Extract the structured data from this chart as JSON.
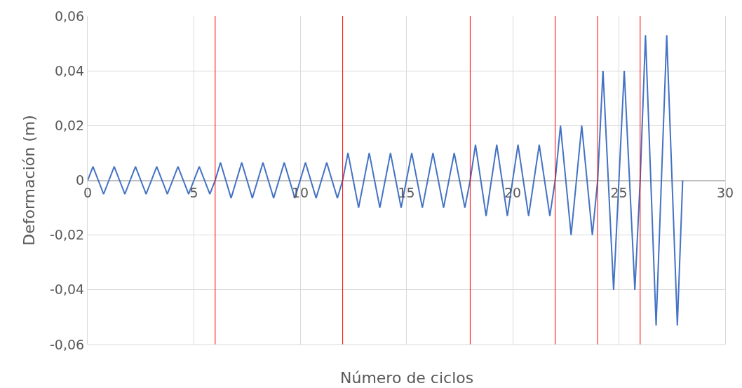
{
  "chart_data": {
    "type": "line",
    "xlabel": "Número de ciclos",
    "ylabel": "Deformación (m)",
    "x": [
      0,
      0.25,
      0.5,
      0.75,
      1,
      1.25,
      1.5,
      1.75,
      2,
      2.25,
      2.5,
      2.75,
      3,
      3.25,
      3.5,
      3.75,
      4,
      4.25,
      4.5,
      4.75,
      5,
      5.25,
      5.5,
      5.75,
      6,
      6.25,
      6.5,
      6.75,
      7,
      7.25,
      7.5,
      7.75,
      8,
      8.25,
      8.5,
      8.75,
      9,
      9.25,
      9.5,
      9.75,
      10,
      10.25,
      10.5,
      10.75,
      11,
      11.25,
      11.5,
      11.75,
      12,
      12.25,
      12.5,
      12.75,
      13,
      13.25,
      13.5,
      13.75,
      14,
      14.25,
      14.5,
      14.75,
      15,
      15.25,
      15.5,
      15.75,
      16,
      16.25,
      16.5,
      16.75,
      17,
      17.25,
      17.5,
      17.75,
      18,
      18.25,
      18.5,
      18.75,
      19,
      19.25,
      19.5,
      19.75,
      20,
      20.25,
      20.5,
      20.75,
      21,
      21.25,
      21.5,
      21.75,
      22,
      22.25,
      22.5,
      22.75,
      23,
      23.25,
      23.5,
      23.75,
      24,
      24.25,
      24.5,
      24.75,
      25,
      25.25,
      25.5,
      25.75,
      26,
      26.25,
      26.5,
      26.75,
      27,
      27.25,
      27.5,
      27.75,
      28
    ],
    "series": [
      {
        "color": "#4472c4",
        "values": [
          0,
          0.005,
          0,
          -0.005,
          0,
          0.005,
          0,
          -0.005,
          0,
          0.005,
          0,
          -0.005,
          0,
          0.005,
          0,
          -0.005,
          0,
          0.005,
          0,
          -0.005,
          0,
          0.005,
          0,
          -0.005,
          0,
          0.0065,
          0,
          -0.0065,
          0,
          0.0065,
          0,
          -0.0065,
          0,
          0.0065,
          0,
          -0.0065,
          0,
          0.0065,
          0,
          -0.0065,
          0,
          0.0065,
          0,
          -0.0065,
          0,
          0.0065,
          0,
          -0.0065,
          0,
          0.01,
          0,
          -0.01,
          0,
          0.01,
          0,
          -0.01,
          0,
          0.01,
          0,
          -0.01,
          0,
          0.01,
          0,
          -0.01,
          0,
          0.01,
          0,
          -0.01,
          0,
          0.01,
          0,
          -0.01,
          0,
          0.013,
          0,
          -0.013,
          0,
          0.013,
          0,
          -0.013,
          0,
          0.013,
          0,
          -0.013,
          0,
          0.013,
          0,
          -0.013,
          0,
          0.02,
          0,
          -0.02,
          0,
          0.02,
          0,
          -0.02,
          0,
          0.04,
          0,
          -0.04,
          0,
          0.04,
          0,
          -0.04,
          0,
          0.053,
          0,
          -0.053,
          0,
          0.053,
          0,
          -0.053,
          0
        ]
      }
    ],
    "xlim": [
      0,
      30
    ],
    "xticks": [
      0,
      5,
      10,
      15,
      20,
      25,
      30
    ],
    "ylim": [
      -0.06,
      0.06
    ],
    "yticks": [
      {
        "value": -0.06,
        "label": "-0,06"
      },
      {
        "value": -0.04,
        "label": "-0,04"
      },
      {
        "value": -0.02,
        "label": "-0,02"
      },
      {
        "value": 0,
        "label": "0"
      },
      {
        "value": 0.02,
        "label": "0,02"
      },
      {
        "value": 0.04,
        "label": "0,04"
      },
      {
        "value": 0.06,
        "label": "0,06"
      }
    ],
    "grid": true,
    "marker": "none",
    "line_style": "solid",
    "ref_lines": [
      {
        "axis": "x",
        "value": 6,
        "color": "#ff0000"
      },
      {
        "axis": "x",
        "value": 12,
        "color": "#ff0000"
      },
      {
        "axis": "x",
        "value": 18,
        "color": "#ff0000"
      },
      {
        "axis": "x",
        "value": 22,
        "color": "#ff0000"
      },
      {
        "axis": "x",
        "value": 24,
        "color": "#ff0000"
      },
      {
        "axis": "x",
        "value": 26,
        "color": "#ff0000"
      }
    ]
  }
}
